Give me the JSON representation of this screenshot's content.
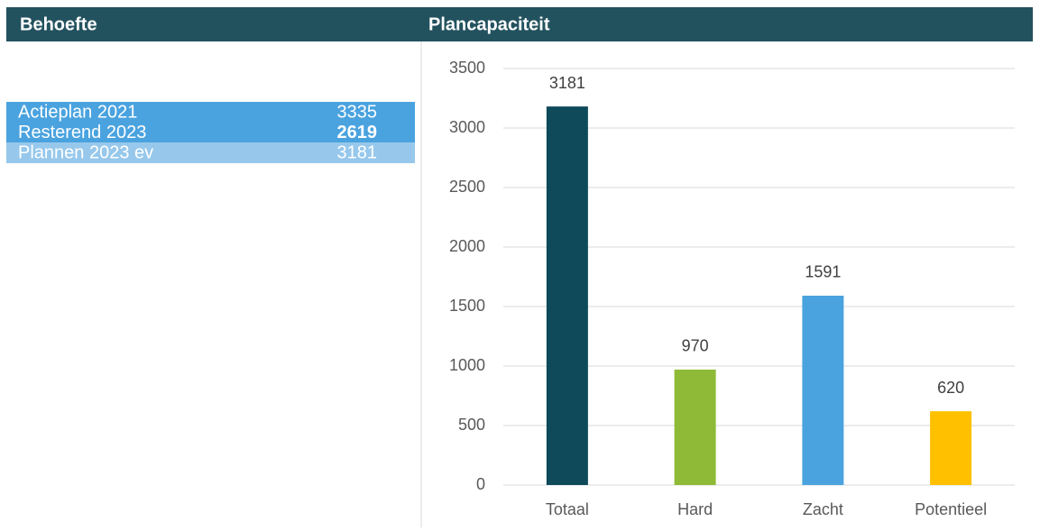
{
  "behoefte": {
    "title": "Behoefte",
    "rows": [
      [
        "Actieplan 2021",
        3335
      ],
      [
        "Resterend 2023",
        2619
      ],
      [
        "Plannen 2023 ev",
        3181
      ]
    ]
  },
  "chart_data": {
    "type": "bar",
    "title": "Plancapaciteit",
    "categories": [
      "Totaal",
      "Hard",
      "Zacht",
      "Potentieel"
    ],
    "values": [
      3181,
      970,
      1591,
      620
    ],
    "colors": [
      "#0e4a5a",
      "#8fba37",
      "#4aa3df",
      "#ffc000"
    ],
    "ylim": [
      0,
      3500
    ],
    "yticks": [
      0,
      500,
      1000,
      1500,
      2000,
      2500,
      3000,
      3500
    ],
    "grid": true
  }
}
